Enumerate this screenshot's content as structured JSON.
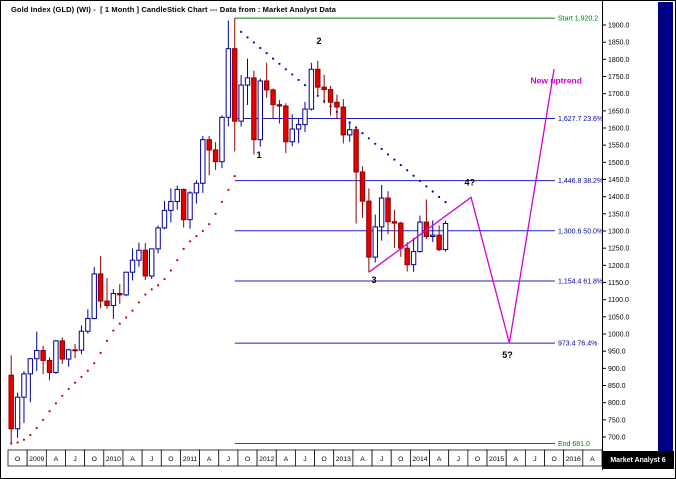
{
  "header": {
    "title": "Gold Index (GLD) (WI) -  [ 1 Month ] CandleStick Chart --- Data from : Market Analyst Data"
  },
  "watermark": "Market Analyst 6",
  "colors": {
    "up_fill": "#ffffff",
    "up_stroke": "#000099",
    "down_fill": "#e60000",
    "down_stroke": "#8b0000",
    "fib_line": "#2222bb",
    "fib_label": "#000099",
    "green": "#008000",
    "magenta": "#d400d4",
    "dot_red": "#cc0000",
    "dot_blue": "#0000cc",
    "axis_text": "#000000",
    "navy_strip": "#000084"
  },
  "chart_data": {
    "type": "candlestick",
    "title": "Gold Index (GLD) (WI) -  [ 1 Month ] CandleStick Chart --- Data from : Market Analyst Data",
    "instrument": "Gold Index (GLD)",
    "interval": "1 Month",
    "start_month": "2008-10",
    "y_axis": {
      "min": 700,
      "max": 1900,
      "tick_step": 50,
      "side": "right"
    },
    "x_axis": {
      "cells": [
        "O",
        "2009",
        "A",
        "J",
        "O",
        "2010",
        "A",
        "J",
        "O",
        "2011",
        "A",
        "J",
        "O",
        "2012",
        "A",
        "J",
        "O",
        "2013",
        "A",
        "J",
        "O",
        "2014",
        "A",
        "J",
        "O",
        "2015",
        "A",
        "J",
        "O",
        "2016",
        "A"
      ]
    },
    "candles": [
      [
        880,
        938,
        681,
        724
      ],
      [
        724,
        829,
        698,
        816
      ],
      [
        816,
        892,
        741,
        884
      ],
      [
        884,
        930,
        801,
        928
      ],
      [
        928,
        1007,
        892,
        952
      ],
      [
        952,
        966,
        883,
        923
      ],
      [
        923,
        932,
        865,
        888
      ],
      [
        888,
        982,
        884,
        980
      ],
      [
        980,
        990,
        913,
        927
      ],
      [
        927,
        957,
        905,
        954
      ],
      [
        954,
        971,
        930,
        953
      ],
      [
        953,
        1025,
        941,
        1008
      ],
      [
        1008,
        1072,
        1001,
        1045
      ],
      [
        1045,
        1195,
        1043,
        1175
      ],
      [
        1175,
        1227,
        1075,
        1096
      ],
      [
        1096,
        1163,
        1074,
        1083
      ],
      [
        1083,
        1131,
        1044,
        1118
      ],
      [
        1118,
        1145,
        1088,
        1114
      ],
      [
        1114,
        1181,
        1110,
        1180
      ],
      [
        1180,
        1249,
        1156,
        1215
      ],
      [
        1215,
        1266,
        1196,
        1244
      ],
      [
        1244,
        1265,
        1157,
        1169
      ],
      [
        1169,
        1246,
        1160,
        1248
      ],
      [
        1248,
        1316,
        1235,
        1309
      ],
      [
        1309,
        1388,
        1305,
        1360
      ],
      [
        1360,
        1424,
        1325,
        1386
      ],
      [
        1386,
        1432,
        1362,
        1421
      ],
      [
        1421,
        1424,
        1310,
        1333
      ],
      [
        1333,
        1416,
        1307,
        1411
      ],
      [
        1411,
        1448,
        1380,
        1439
      ],
      [
        1439,
        1577,
        1411,
        1566
      ],
      [
        1566,
        1577,
        1462,
        1536
      ],
      [
        1536,
        1559,
        1478,
        1502
      ],
      [
        1502,
        1637,
        1483,
        1631
      ],
      [
        1631,
        1913,
        1605,
        1831
      ],
      [
        1831,
        1920,
        1532,
        1620
      ],
      [
        1620,
        1754,
        1604,
        1725
      ],
      [
        1725,
        1802,
        1667,
        1746
      ],
      [
        1746,
        1767,
        1523,
        1566
      ],
      [
        1566,
        1744,
        1546,
        1737
      ],
      [
        1737,
        1790,
        1688,
        1711
      ],
      [
        1711,
        1715,
        1627,
        1668
      ],
      [
        1668,
        1681,
        1613,
        1664
      ],
      [
        1664,
        1672,
        1527,
        1560
      ],
      [
        1560,
        1640,
        1547,
        1597
      ],
      [
        1597,
        1628,
        1556,
        1610
      ],
      [
        1610,
        1676,
        1588,
        1655
      ],
      [
        1655,
        1790,
        1651,
        1771
      ],
      [
        1771,
        1796,
        1698,
        1719
      ],
      [
        1719,
        1755,
        1672,
        1712
      ],
      [
        1712,
        1723,
        1636,
        1675
      ],
      [
        1675,
        1697,
        1626,
        1661
      ],
      [
        1661,
        1684,
        1555,
        1580
      ],
      [
        1580,
        1619,
        1560,
        1595
      ],
      [
        1595,
        1605,
        1322,
        1472
      ],
      [
        1472,
        1488,
        1338,
        1387
      ],
      [
        1387,
        1424,
        1180,
        1224
      ],
      [
        1224,
        1348,
        1208,
        1312
      ],
      [
        1312,
        1434,
        1272,
        1396
      ],
      [
        1396,
        1416,
        1291,
        1327
      ],
      [
        1327,
        1362,
        1251,
        1323
      ],
      [
        1323,
        1327,
        1225,
        1250
      ],
      [
        1250,
        1267,
        1182,
        1202
      ],
      [
        1202,
        1280,
        1181,
        1240
      ],
      [
        1240,
        1345,
        1237,
        1326
      ],
      [
        1326,
        1392,
        1277,
        1284
      ],
      [
        1284,
        1331,
        1268,
        1288
      ],
      [
        1288,
        1316,
        1241,
        1246
      ],
      [
        1246,
        1330,
        1240,
        1322
      ]
    ],
    "fib_levels": [
      {
        "price": 1627.7,
        "label": "1,627.7 23.6%"
      },
      {
        "price": 1446.8,
        "label": "1,446.8 38.2%"
      },
      {
        "price": 1300.6,
        "label": "1,300.6 50.0%"
      },
      {
        "price": 1154.4,
        "label": "1,154.4 61.8%"
      },
      {
        "price": 973.4,
        "label": "973.4 76.4%"
      }
    ],
    "start_line": {
      "price": 1920.2,
      "label": "Start 1,920.2"
    },
    "end_line": {
      "price": 681.0,
      "label": "End 681.0"
    },
    "sar_dots": {
      "red_start": 0,
      "red": [
        681,
        684,
        692,
        706,
        726,
        750,
        775,
        798,
        820,
        840,
        858,
        875,
        893,
        915,
        945,
        980,
        1010,
        1030,
        1048,
        1068,
        1092,
        1115,
        1130,
        1142,
        1160,
        1185,
        1215,
        1248,
        1270,
        1285,
        1300,
        1320,
        1350,
        1385,
        1420,
        1460
      ],
      "blue_start": 36,
      "blue": [
        1880,
        1864,
        1849,
        1833,
        1818,
        1802,
        1787,
        1771,
        1756,
        1740,
        1725,
        1709,
        1694,
        1678,
        1663,
        1647,
        1632,
        1616,
        1601,
        1585,
        1570,
        1554,
        1539,
        1523,
        1508,
        1492,
        1477,
        1461,
        1446,
        1430,
        1415,
        1399,
        1384
      ]
    },
    "projection": {
      "points": [
        [
          56,
          1180
        ],
        [
          72,
          1398
        ],
        [
          78,
          973.4
        ],
        [
          85,
          1772
        ]
      ],
      "label": "New uptrend",
      "label_at": [
        81.3,
        1730
      ]
    },
    "wave_labels": [
      {
        "text": "1",
        "m": 38.8,
        "p": 1512
      },
      {
        "text": "2",
        "m": 48.2,
        "p": 1845
      },
      {
        "text": "3",
        "m": 56.8,
        "p": 1148
      },
      {
        "text": "4?",
        "m": 71.8,
        "p": 1432
      },
      {
        "text": "5?",
        "m": 77.7,
        "p": 930
      }
    ]
  }
}
